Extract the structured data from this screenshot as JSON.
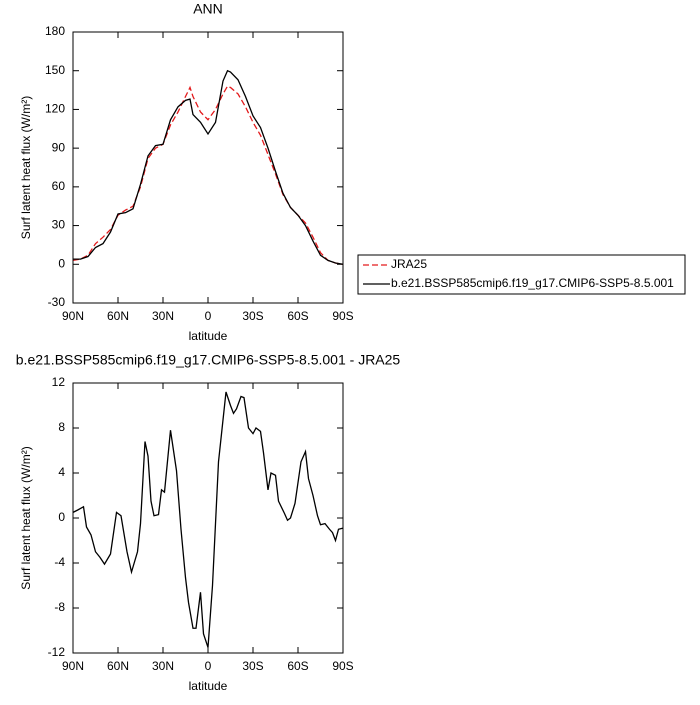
{
  "chart_data": [
    {
      "type": "line",
      "title": "ANN",
      "xlabel": "latitude",
      "ylabel": "Surf latent heat flux (W/m²)",
      "xlim": [
        90,
        -90
      ],
      "xticks": [
        {
          "value": 90,
          "label": "90N"
        },
        {
          "value": 60,
          "label": "60N"
        },
        {
          "value": 30,
          "label": "30N"
        },
        0,
        {
          "value": -30,
          "label": "30S"
        },
        {
          "value": -60,
          "label": "60S"
        },
        {
          "value": -90,
          "label": "90S"
        }
      ],
      "ylim": [
        -30,
        180
      ],
      "yticks": [
        -30,
        0,
        30,
        60,
        90,
        120,
        150,
        180
      ],
      "x": [
        90,
        85,
        80,
        75,
        70,
        65,
        60,
        55,
        50,
        45,
        40,
        35,
        30,
        25,
        20,
        15,
        12,
        10,
        5,
        0,
        -5,
        -10,
        -13,
        -15,
        -20,
        -25,
        -30,
        -35,
        -40,
        -45,
        -50,
        -55,
        -60,
        -65,
        -70,
        -75,
        -80,
        -85,
        -90
      ],
      "series": [
        {
          "name": "JRA25",
          "color": "#e31a1c",
          "linestyle": "dashed",
          "values": [
            3,
            4,
            7,
            16,
            21,
            27,
            38,
            42,
            45,
            60,
            82,
            90,
            93,
            108,
            118,
            130,
            137,
            130,
            118,
            112,
            120,
            132,
            138,
            137,
            132,
            122,
            110,
            100,
            85,
            70,
            54,
            44,
            38,
            32,
            21,
            9,
            3,
            1,
            0
          ]
        },
        {
          "name": "b.e21.BSSP585cmip6.f19_g17.CMIP6-SSP5-8.5.001",
          "color": "#000000",
          "linestyle": "solid",
          "values": [
            4,
            4,
            6,
            13,
            16,
            25,
            39,
            40,
            43,
            62,
            84,
            92,
            93,
            112,
            122,
            127,
            128,
            116,
            110,
            101,
            110,
            142,
            150,
            149,
            143,
            130,
            115,
            106,
            90,
            72,
            55,
            44,
            38,
            30,
            18,
            7,
            3,
            1,
            0
          ]
        }
      ],
      "legend": "right"
    },
    {
      "type": "line",
      "title": "b.e21.BSSP585cmip6.f19_g17.CMIP6-SSP5-8.5.001 - JRA25",
      "xlabel": "latitude",
      "ylabel": "Surf latent heat flux (W/m²)",
      "xlim": [
        90,
        -90
      ],
      "xticks": [
        {
          "value": 90,
          "label": "90N"
        },
        {
          "value": 60,
          "label": "60N"
        },
        {
          "value": 30,
          "label": "30N"
        },
        0,
        {
          "value": -30,
          "label": "30S"
        },
        {
          "value": -60,
          "label": "60S"
        },
        {
          "value": -90,
          "label": "90S"
        }
      ],
      "ylim": [
        -12,
        12
      ],
      "yticks": [
        -12,
        -8,
        -4,
        0,
        4,
        8,
        12
      ],
      "x": [
        90,
        87,
        83,
        81,
        78,
        75,
        72,
        69,
        65,
        61,
        58,
        54,
        51,
        47,
        45,
        42,
        40,
        38,
        36,
        33,
        31,
        29,
        25,
        23,
        21,
        18,
        15,
        13,
        10,
        8,
        5,
        3,
        0,
        -3,
        -7,
        -12,
        -15,
        -17,
        -19,
        -22,
        -24,
        -27,
        -30,
        -32,
        -35,
        -37,
        -40,
        -42,
        -45,
        -47,
        -51,
        -53,
        -55,
        -58,
        -62,
        -65,
        -67,
        -70,
        -73,
        -75,
        -78,
        -81,
        -83,
        -85,
        -87,
        -90
      ],
      "series": [
        {
          "color": "#000000",
          "linestyle": "solid",
          "values": [
            0.5,
            0.7,
            1.0,
            -0.8,
            -1.5,
            -3,
            -3.5,
            -4.1,
            -3.2,
            0.5,
            0.2,
            -3,
            -4.8,
            -3,
            -0.5,
            6.8,
            5.5,
            1.5,
            0.2,
            0.3,
            2.5,
            2.3,
            7.8,
            6,
            4.2,
            -1,
            -5.3,
            -7.5,
            -9.8,
            -9.8,
            -6.6,
            -10.3,
            -11.5,
            -6,
            5,
            11.2,
            10,
            9.3,
            9.7,
            10.8,
            10.7,
            8,
            7.5,
            8,
            7.7,
            5.8,
            2.5,
            4,
            3.8,
            1.5,
            0.4,
            -0.2,
            0,
            1.3,
            5,
            5.9,
            3.5,
            2,
            0.2,
            -0.6,
            -0.5,
            -1,
            -1.3,
            -2,
            -1,
            -0.9
          ]
        }
      ]
    }
  ]
}
